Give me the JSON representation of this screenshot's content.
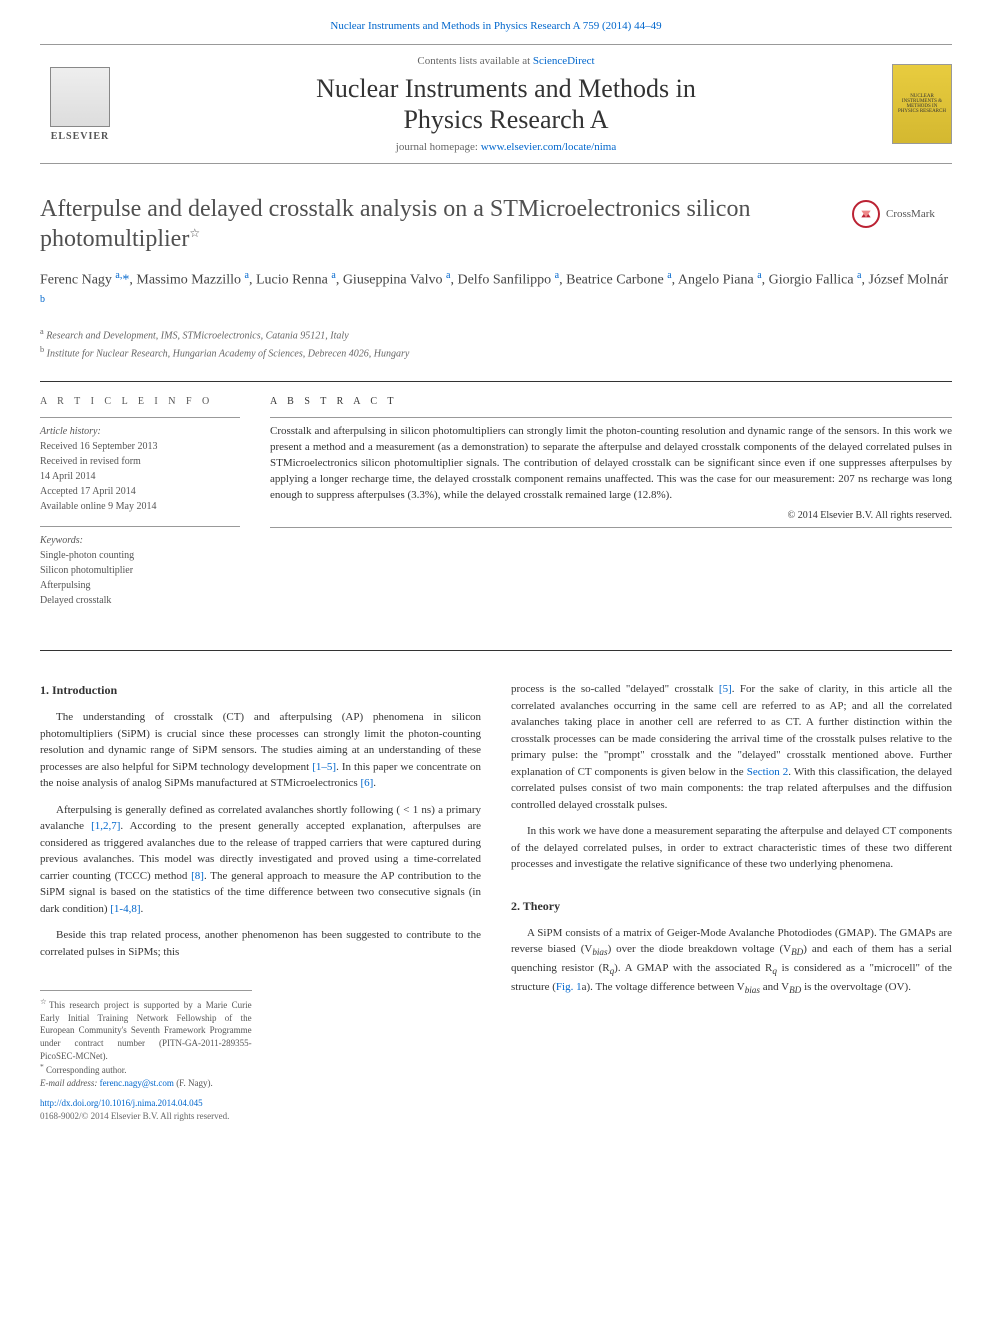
{
  "top_link": {
    "prefix": "",
    "journal_link_text": "Nuclear Instruments and Methods in Physics Research A 759 (2014) 44–49"
  },
  "header": {
    "sciencedirect_prefix": "Contents lists available at ",
    "sciencedirect_link": "ScienceDirect",
    "journal_name_line1": "Nuclear Instruments and Methods in",
    "journal_name_line2": "Physics Research A",
    "homepage_prefix": "journal homepage: ",
    "homepage_link": "www.elsevier.com/locate/nima",
    "elsevier_label": "ELSEVIER",
    "cover_text": "NUCLEAR INSTRUMENTS & METHODS IN PHYSICS RESEARCH"
  },
  "crossmark": {
    "label": "CrossMark"
  },
  "title": "Afterpulse and delayed crosstalk analysis on a STMicroelectronics silicon photomultiplier",
  "title_footnote_marker": "☆",
  "authors_html": "Ferenc Nagy <sup>a,</sup><span class='corr'>*</span>, Massimo Mazzillo <sup>a</sup>, Lucio Renna <sup>a</sup>, Giuseppina Valvo <sup>a</sup>, Delfo Sanfilippo <sup>a</sup>, Beatrice Carbone <sup>a</sup>, Angelo Piana <sup>a</sup>, Giorgio Fallica <sup>a</sup>, József Molnár <sup>b</sup>",
  "affiliations": [
    {
      "marker": "a",
      "text": "Research and Development, IMS, STMicroelectronics, Catania 95121, Italy"
    },
    {
      "marker": "b",
      "text": "Institute for Nuclear Research, Hungarian Academy of Sciences, Debrecen 4026, Hungary"
    }
  ],
  "article_info": {
    "heading": "A R T I C L E  I N F O",
    "history_label": "Article history:",
    "history": [
      "Received 16 September 2013",
      "Received in revised form",
      "14 April 2014",
      "Accepted 17 April 2014",
      "Available online 9 May 2014"
    ],
    "keywords_label": "Keywords:",
    "keywords": [
      "Single-photon counting",
      "Silicon photomultiplier",
      "Afterpulsing",
      "Delayed crosstalk"
    ]
  },
  "abstract": {
    "heading": "A B S T R A C T",
    "text": "Crosstalk and afterpulsing in silicon photomultipliers can strongly limit the photon-counting resolution and dynamic range of the sensors. In this work we present a method and a measurement (as a demonstration) to separate the afterpulse and delayed crosstalk components of the delayed correlated pulses in STMicroelectronics silicon photomultiplier signals. The contribution of delayed crosstalk can be significant since even if one suppresses afterpulses by applying a longer recharge time, the delayed crosstalk component remains unaffected. This was the case for our measurement: 207 ns recharge was long enough to suppress afterpulses (3.3%), while the delayed crosstalk remained large (12.8%).",
    "copyright": "© 2014 Elsevier B.V. All rights reserved."
  },
  "body": {
    "sec1_heading": "1.  Introduction",
    "sec1_p1": "The understanding of crosstalk (CT) and afterpulsing (AP) phenomena in silicon photomultipliers (SiPM) is crucial since these processes can strongly limit the photon-counting resolution and dynamic range of SiPM sensors. The studies aiming at an understanding of these processes are also helpful for SiPM technology development ",
    "sec1_p1_ref1": "[1–5]",
    "sec1_p1_b": ". In this paper we concentrate on the noise analysis of analog SiPMs manufactured at STMicroelectronics ",
    "sec1_p1_ref2": "[6]",
    "sec1_p1_c": ".",
    "sec1_p2_a": "Afterpulsing is generally defined as correlated avalanches shortly following ( < 1 ns) a primary avalanche ",
    "sec1_p2_ref1": "[1,2,7]",
    "sec1_p2_b": ". According to the present generally accepted explanation, afterpulses are considered as triggered avalanches due to the release of trapped carriers that were captured during previous avalanches. This model was directly investigated and proved using a time-correlated carrier counting (TCCC) method ",
    "sec1_p2_ref2": "[8]",
    "sec1_p2_c": ". The general approach to measure the AP contribution to the SiPM signal is based on the statistics of the time difference between two consecutive signals (in dark condition) ",
    "sec1_p2_ref3": "[1-4,8]",
    "sec1_p2_d": ".",
    "sec1_p3": "Beside this trap related process, another phenomenon has been suggested to contribute to the correlated pulses in SiPMs; this",
    "col2_p1_a": "process is the so-called \"delayed\" crosstalk ",
    "col2_p1_ref1": "[5]",
    "col2_p1_b": ". For the sake of clarity, in this article all the correlated avalanches occurring in the same cell are referred to as AP; and all the correlated avalanches taking place in another cell are referred to as CT. A further distinction within the crosstalk processes can be made considering the arrival time of the crosstalk pulses relative to the primary pulse: the \"prompt\" crosstalk and the \"delayed\" crosstalk mentioned above. Further explanation of CT components is given below in the ",
    "col2_p1_ref2": "Section 2",
    "col2_p1_c": ". With this classification, the delayed correlated pulses consist of two main components: the trap related afterpulses and the diffusion controlled delayed crosstalk pulses.",
    "col2_p2": "In this work we have done a measurement separating the afterpulse and delayed CT components of the delayed correlated pulses, in order to extract characteristic times of these two different processes and investigate the relative significance of these two underlying phenomena.",
    "sec2_heading": "2.  Theory",
    "sec2_p1_a": "A SiPM consists of a matrix of Geiger-Mode Avalanche Photodiodes (GMAP). The GMAPs are reverse biased (V",
    "sec2_p1_sub1": "bias",
    "sec2_p1_b": ") over the diode breakdown voltage (V",
    "sec2_p1_sub2": "BD",
    "sec2_p1_c": ") and each of them has a serial quenching resistor (R",
    "sec2_p1_sub3": "q",
    "sec2_p1_d": "). A GMAP with the associated R",
    "sec2_p1_sub4": "q",
    "sec2_p1_e": " is considered as a \"microcell\" of the structure (",
    "sec2_p1_ref1": "Fig. 1",
    "sec2_p1_f": "a). The voltage difference between V",
    "sec2_p1_sub5": "bias",
    "sec2_p1_g": " and V",
    "sec2_p1_sub6": "BD",
    "sec2_p1_h": " is the overvoltage (OV)."
  },
  "footnotes": {
    "funding_marker": "☆",
    "funding": "This research project is supported by a Marie Curie Early Initial Training Network Fellowship of the European Community's Seventh Framework Programme under contract number (PITN-GA-2011-289355-PicoSEC-MCNet).",
    "corr_marker": "*",
    "corr": "Corresponding author.",
    "email_label": "E-mail address: ",
    "email": "ferenc.nagy@st.com",
    "email_suffix": " (F. Nagy).",
    "doi": "http://dx.doi.org/10.1016/j.nima.2014.04.045",
    "issn": "0168-9002/© 2014 Elsevier B.V. All rights reserved."
  },
  "colors": {
    "link": "#0066cc",
    "text": "#333333",
    "muted": "#666666",
    "crossmark": "#bb2233",
    "cover_bg": "#e8cc3f"
  }
}
